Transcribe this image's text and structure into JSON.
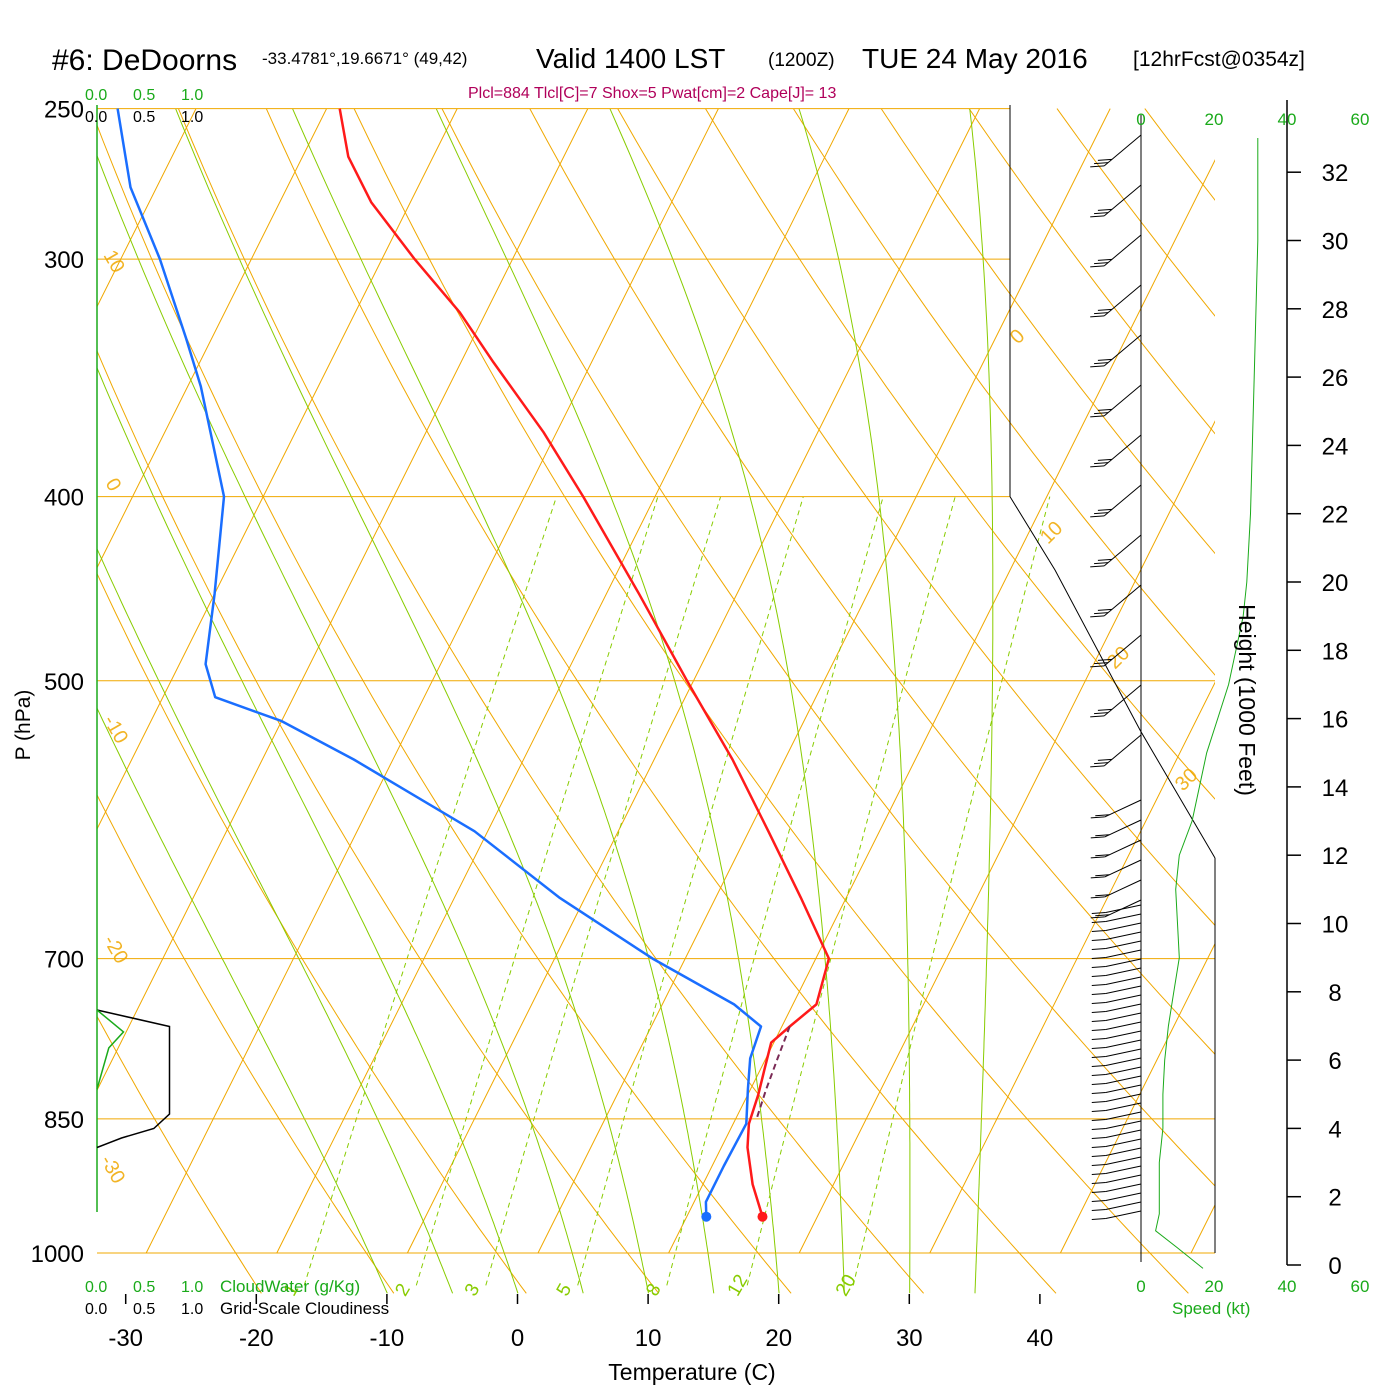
{
  "header": {
    "station": "#6: DeDoorns",
    "coords": "-33.4781°,19.6671° (49,42)",
    "valid": "Valid 1400 LST",
    "utc": "(1200Z)",
    "date": "TUE 24 May 2016",
    "forecast": "[12hrFcst@0354z]",
    "indices": "Plcl=884 Tlcl[C]=7 Shox=5 Pwat[cm]=2 Cape[J]= 13"
  },
  "colors": {
    "temperature": "#ff1a1a",
    "dewpoint": "#1a6eff",
    "isotherm": "#f0a800",
    "adiabat": "#88cc00",
    "mixing": "#88cc00",
    "accent_green": "#1aaa1a",
    "indices": "#b0005a"
  },
  "chart_data": {
    "type": "line",
    "title": "#6: DeDoorns",
    "xlabel": "Temperature (C)",
    "ylabel": "P (hPa)",
    "right_label": "Height (1000 Feet)",
    "x_ticks": [
      -30,
      -20,
      -10,
      0,
      10,
      20,
      30,
      40
    ],
    "p_ticks": [
      1000,
      850,
      700,
      500,
      400,
      300,
      250
    ],
    "height_ticks": [
      0,
      2,
      4,
      6,
      8,
      10,
      12,
      14,
      16,
      18,
      20,
      22,
      24,
      26,
      28,
      30,
      32
    ],
    "isotherm_labels": [
      "-30",
      "-20",
      "-10",
      "0",
      "10",
      "20",
      "30"
    ],
    "mixing_ratio_labels": [
      "1",
      "2",
      "3",
      "5",
      "8",
      "12",
      "20"
    ],
    "series": [
      {
        "name": "Temperature",
        "points": [
          [
            957,
            15.8
          ],
          [
            920,
            13.8
          ],
          [
            880,
            12.0
          ],
          [
            855,
            11.2
          ],
          [
            825,
            10.8
          ],
          [
            800,
            10.3
          ],
          [
            775,
            9.8
          ],
          [
            760,
            10.6
          ],
          [
            740,
            11.8
          ],
          [
            700,
            11.0
          ],
          [
            650,
            6.5
          ],
          [
            600,
            1.5
          ],
          [
            550,
            -4.0
          ],
          [
            500,
            -10.5
          ],
          [
            450,
            -17.5
          ],
          [
            400,
            -25.5
          ],
          [
            370,
            -31.0
          ],
          [
            340,
            -37.5
          ],
          [
            320,
            -42.0
          ],
          [
            300,
            -47.5
          ],
          [
            280,
            -53.0
          ],
          [
            265,
            -56.5
          ],
          [
            250,
            -59.0
          ]
        ]
      },
      {
        "name": "Dewpoint",
        "points": [
          [
            957,
            11.5
          ],
          [
            940,
            10.9
          ],
          [
            900,
            10.9
          ],
          [
            855,
            11.0
          ],
          [
            820,
            9.8
          ],
          [
            790,
            8.8
          ],
          [
            760,
            8.4
          ],
          [
            740,
            5.5
          ],
          [
            700,
            -2.5
          ],
          [
            650,
            -12.0
          ],
          [
            600,
            -21.0
          ],
          [
            550,
            -33.0
          ],
          [
            525,
            -40.0
          ],
          [
            510,
            -46.0
          ],
          [
            490,
            -48.0
          ],
          [
            450,
            -50.0
          ],
          [
            400,
            -53.0
          ],
          [
            370,
            -56.5
          ],
          [
            350,
            -59.0
          ],
          [
            330,
            -62.0
          ],
          [
            300,
            -67.0
          ],
          [
            275,
            -72.0
          ],
          [
            250,
            -76.0
          ]
        ]
      },
      {
        "name": "Parcel",
        "points": [
          [
            760,
            10.6
          ],
          [
            790,
            10.9
          ],
          [
            820,
            11.2
          ],
          [
            850,
            11.6
          ]
        ]
      }
    ],
    "surface": {
      "pressure": 957,
      "temperature": 15.8,
      "dewpoint": 11.5
    },
    "wind_profile": {
      "speed_label": "Speed (kt)",
      "speed_ticks": [
        "0",
        "20",
        "40",
        "60"
      ],
      "points": [
        [
          -0.1,
          17
        ],
        [
          0.5,
          10
        ],
        [
          1.0,
          4
        ],
        [
          1.5,
          5
        ],
        [
          2.0,
          5
        ],
        [
          3.0,
          5
        ],
        [
          4.0,
          6
        ],
        [
          5.0,
          6
        ],
        [
          6.0,
          6.5
        ],
        [
          7.0,
          7.5
        ],
        [
          8.0,
          9
        ],
        [
          9.0,
          10.5
        ],
        [
          10.0,
          10
        ],
        [
          11.0,
          9.5
        ],
        [
          12.0,
          10.5
        ],
        [
          13.0,
          14
        ],
        [
          14.0,
          16
        ],
        [
          15.0,
          18
        ],
        [
          16.0,
          21
        ],
        [
          17.0,
          24
        ],
        [
          18.0,
          26
        ],
        [
          19.0,
          28
        ],
        [
          20.0,
          29
        ],
        [
          22.0,
          30
        ],
        [
          26.0,
          31
        ],
        [
          30.0,
          32
        ],
        [
          33.0,
          32
        ]
      ]
    },
    "cloud_panel": {
      "cloudwater_label": "CloudWater (g/Kg)",
      "cloudiness_label": "Grid-Scale Cloudiness",
      "scale_ticks": [
        "0.0",
        "0.5",
        "1.0"
      ],
      "cloudiness_points": [
        [
          745,
          0.0
        ],
        [
          760,
          0.74
        ],
        [
          845,
          0.74
        ],
        [
          860,
          0.58
        ],
        [
          870,
          0.25
        ],
        [
          880,
          0.0
        ]
      ],
      "cloudwater_points": [
        [
          745,
          0.0
        ],
        [
          765,
          0.27
        ],
        [
          780,
          0.12
        ],
        [
          820,
          0.0
        ]
      ]
    }
  }
}
